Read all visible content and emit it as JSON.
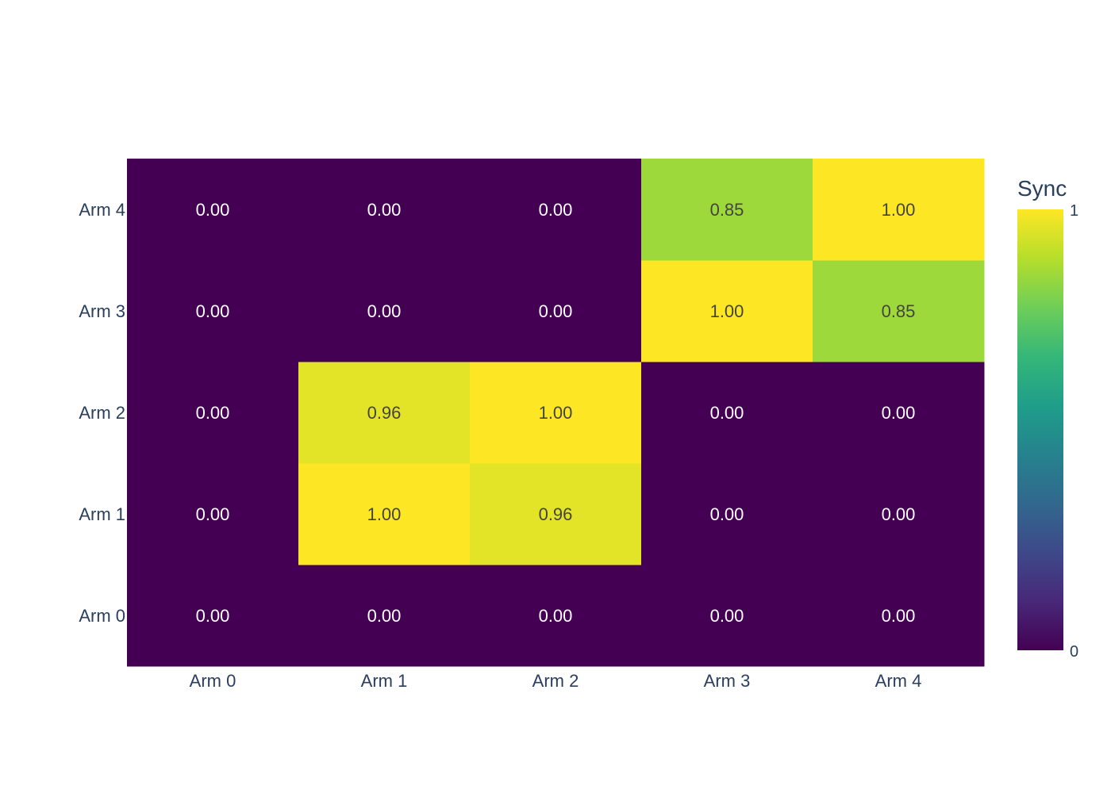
{
  "chart_data": {
    "type": "heatmap",
    "x_categories": [
      "Arm 0",
      "Arm 1",
      "Arm 2",
      "Arm 3",
      "Arm 4"
    ],
    "y_categories": [
      "Arm 0",
      "Arm 1",
      "Arm 2",
      "Arm 3",
      "Arm 4"
    ],
    "z": [
      [
        0.0,
        0.0,
        0.0,
        0.0,
        0.0
      ],
      [
        0.0,
        1.0,
        0.96,
        0.0,
        0.0
      ],
      [
        0.0,
        0.96,
        1.0,
        0.0,
        0.0
      ],
      [
        0.0,
        0.0,
        0.0,
        1.0,
        0.85
      ],
      [
        0.0,
        0.0,
        0.0,
        0.85,
        1.0
      ]
    ],
    "zlim": [
      0,
      1
    ],
    "colorscale": "Viridis",
    "colorbar": {
      "title": "Sync",
      "tick_max": "1",
      "tick_min": "0"
    },
    "text_format": "2 decimals",
    "grid": false,
    "colorbar_placement": "right"
  }
}
